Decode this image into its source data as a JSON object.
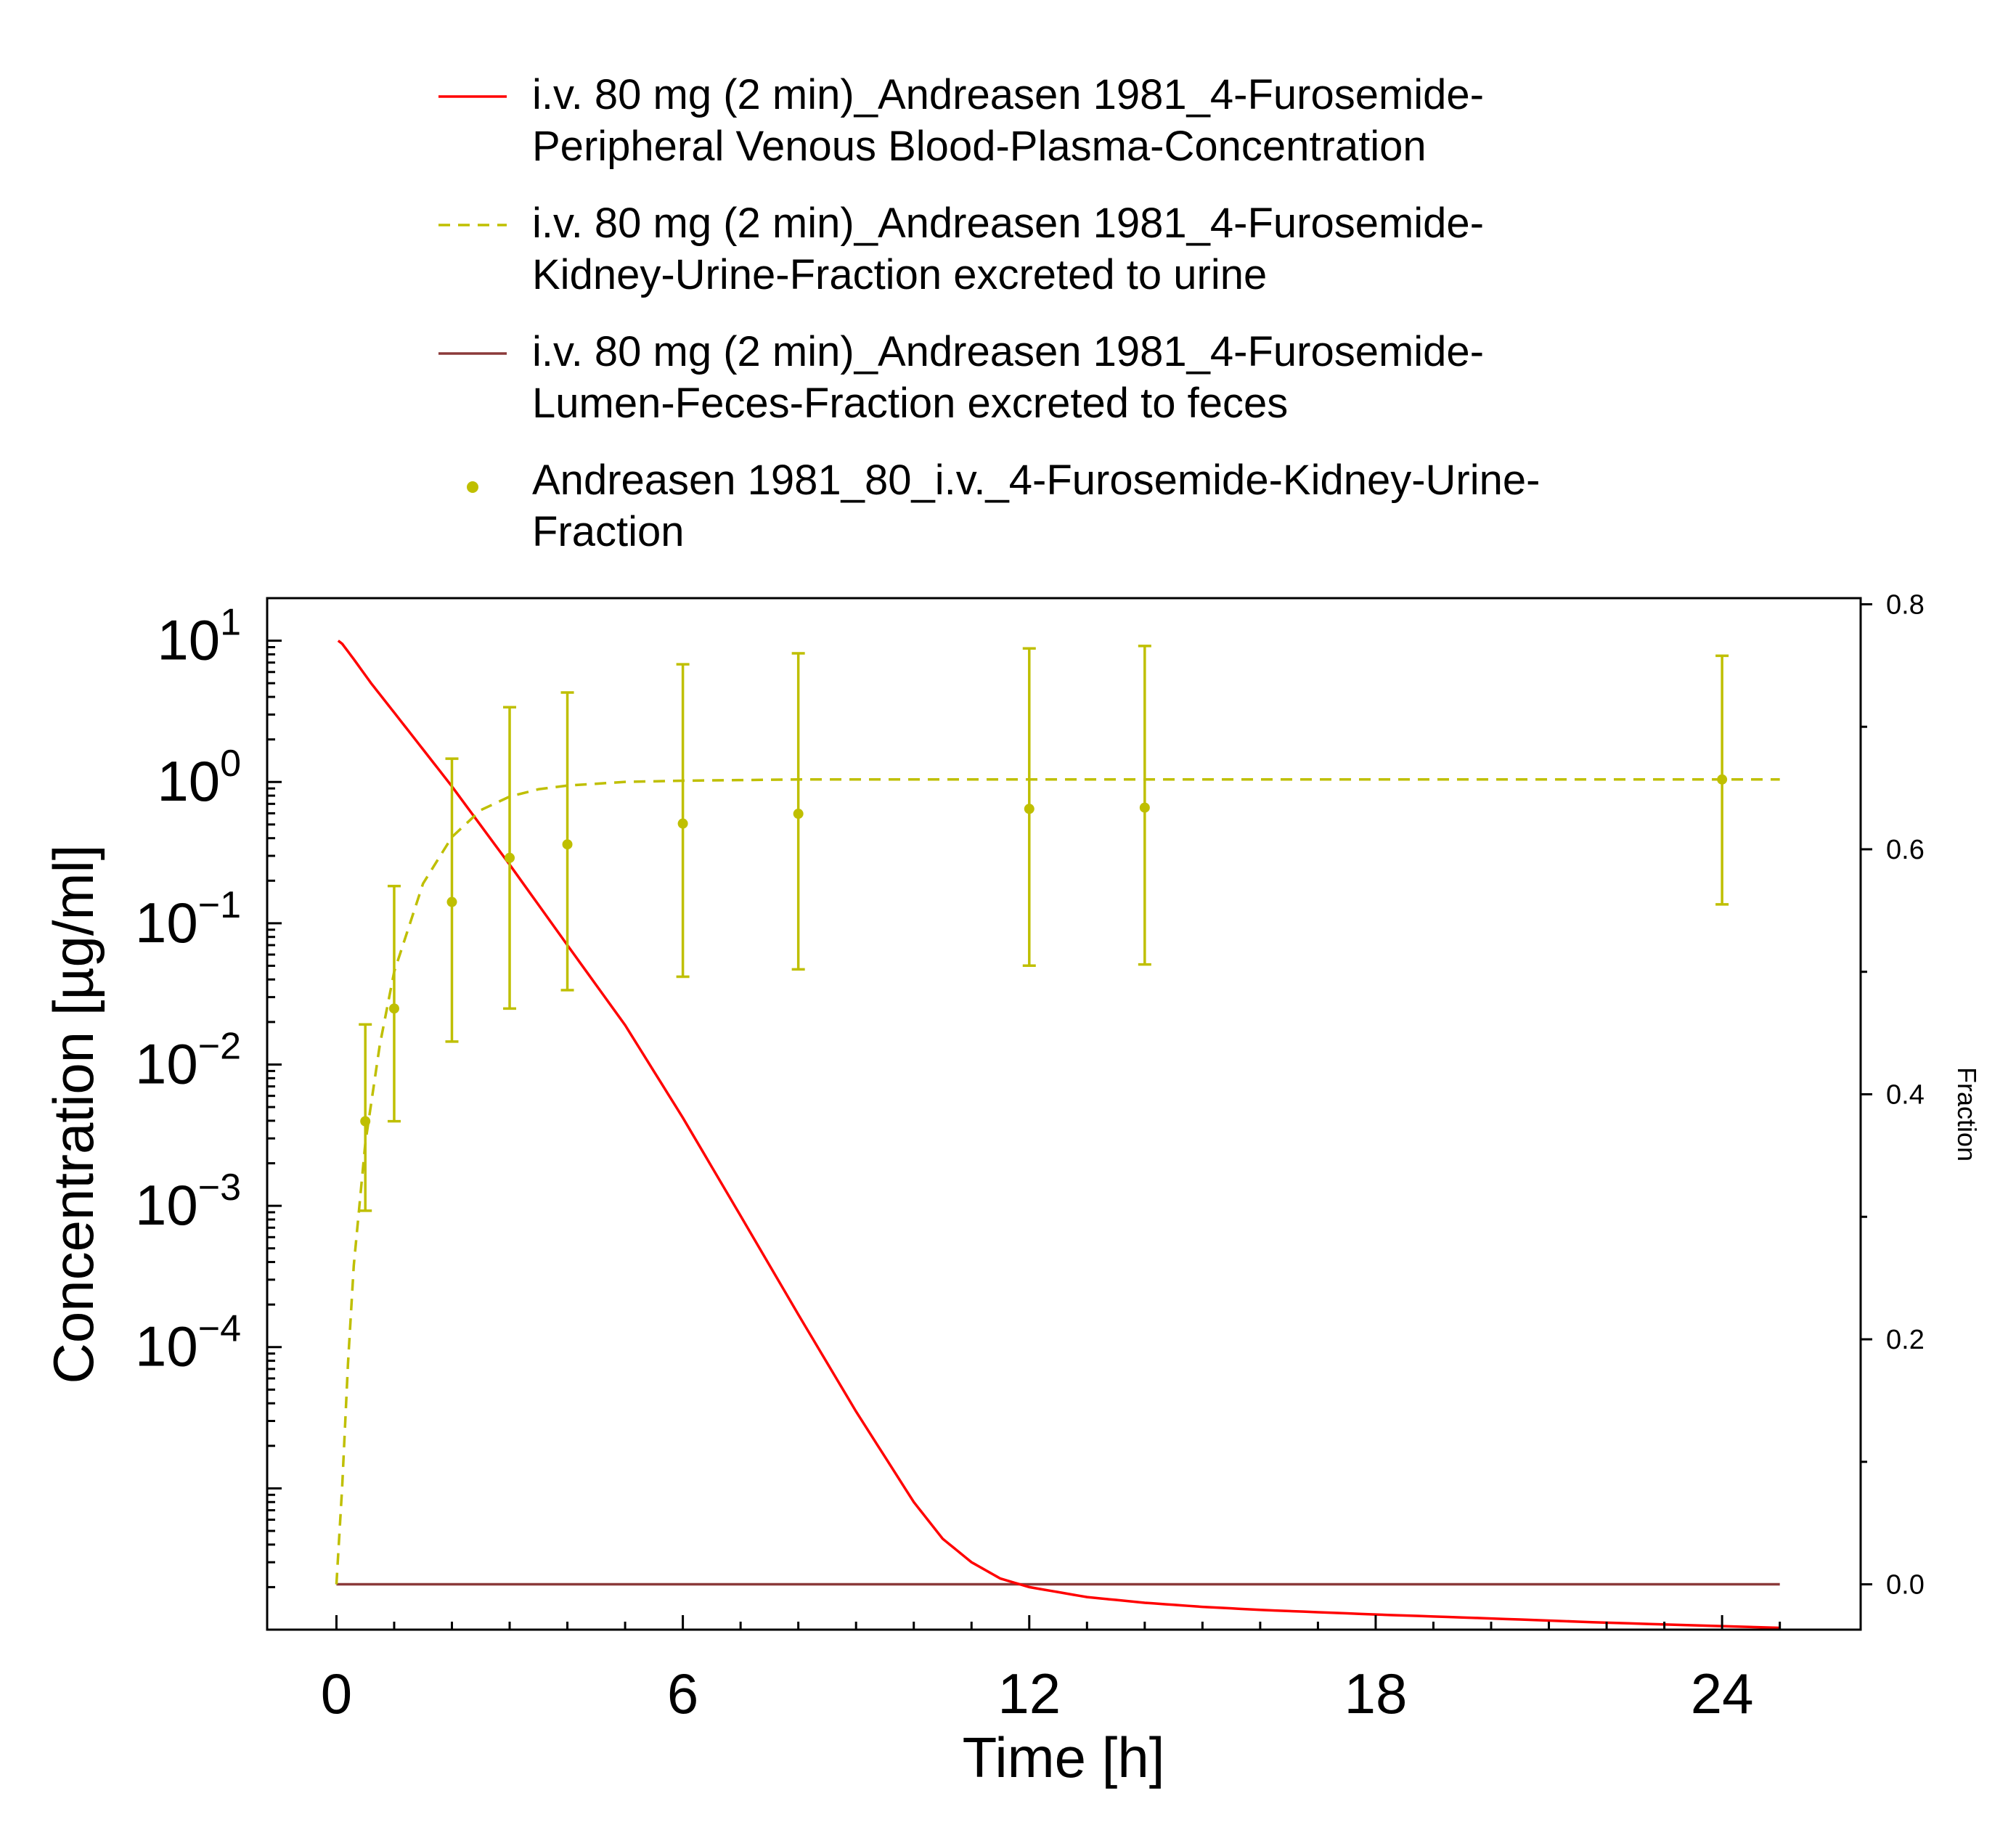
{
  "chart_data": {
    "type": "line",
    "xlabel": "Time [h]",
    "ylabel": "Concentration [µg/ml]",
    "y2label": "Fraction",
    "xlim": [
      -1.2,
      26.4
    ],
    "xticks": [
      "0",
      "6",
      "12",
      "18",
      "24"
    ],
    "ylim": [
      1e-06,
      20
    ],
    "yscale": "log",
    "yticks": [
      {
        "base": "10",
        "exp": "1"
      },
      {
        "base": "10",
        "exp": "0"
      },
      {
        "base": "10",
        "exp": "−1"
      },
      {
        "base": "10",
        "exp": "−2"
      },
      {
        "base": "10",
        "exp": "−3"
      },
      {
        "base": "10",
        "exp": "−4"
      }
    ],
    "y2lim": [
      -0.037,
      0.805
    ],
    "y2ticks": [
      "0.0",
      "0.2",
      "0.4",
      "0.6",
      "0.8"
    ],
    "grid": false,
    "legend_position": "top",
    "colors": {
      "plasma": "#ff0000",
      "urine": "#bfbf00",
      "feces": "#8b3a3a",
      "axis": "#000000"
    },
    "series": [
      {
        "name": "i.v. 80 mg (2 min)_Andreasen 1981_4-Furosemide-Peripheral Venous Blood-Plasma-Concentration",
        "legend_lines": [
          "i.v. 80 mg (2 min)_Andreasen 1981_4-Furosemide-",
          "Peripheral Venous Blood-Plasma-Concentration"
        ],
        "axis": "left",
        "style": "solid",
        "x": [
          0.03,
          0.1,
          0.3,
          0.6,
          1,
          1.5,
          2,
          3,
          4,
          5,
          6,
          7,
          8,
          9,
          10,
          10.5,
          11,
          11.5,
          12,
          13,
          14,
          15,
          16,
          18,
          20,
          22,
          25
        ],
        "y": [
          10.0,
          9.5,
          7.4,
          5.0,
          3.1,
          1.7,
          0.93,
          0.26,
          0.07,
          0.019,
          0.0042,
          0.00085,
          0.00017,
          3.5e-05,
          8e-06,
          4.4e-06,
          3e-06,
          2.3e-06,
          2e-06,
          1.7e-06,
          1.55e-06,
          1.45e-06,
          1.38e-06,
          1.28e-06,
          1.2e-06,
          1.12e-06,
          1.03e-06
        ]
      },
      {
        "name": "i.v. 80 mg (2 min)_Andreasen 1981_4-Furosemide-Kidney-Urine-Fraction excreted to urine",
        "legend_lines": [
          "i.v. 80 mg (2 min)_Andreasen 1981_4-Furosemide-",
          "Kidney-Urine-Fraction excreted to urine"
        ],
        "axis": "right",
        "style": "dashed",
        "x": [
          0,
          0.1,
          0.2,
          0.3,
          0.5,
          0.75,
          1,
          1.5,
          2,
          2.5,
          3,
          3.5,
          4,
          5,
          6,
          8,
          10,
          12,
          15,
          20,
          25
        ],
        "y": [
          0.0,
          0.08,
          0.18,
          0.26,
          0.36,
          0.44,
          0.5,
          0.572,
          0.61,
          0.632,
          0.643,
          0.649,
          0.652,
          0.655,
          0.656,
          0.657,
          0.657,
          0.657,
          0.657,
          0.657,
          0.657
        ]
      },
      {
        "name": "i.v. 80 mg (2 min)_Andreasen 1981_4-Furosemide-Lumen-Feces-Fraction excreted to feces",
        "legend_lines": [
          "i.v. 80 mg (2 min)_Andreasen 1981_4-Furosemide-",
          "Lumen-Feces-Fraction excreted to feces"
        ],
        "axis": "right",
        "style": "solid",
        "x": [
          0,
          25
        ],
        "y": [
          0.0,
          0.0
        ]
      },
      {
        "name": "Andreasen 1981_80_i.v._4-Furosemide-Kidney-Urine-Fraction",
        "legend_lines": [
          "Andreasen 1981_80_i.v._4-Furosemide-Kidney-Urine-",
          "Fraction"
        ],
        "axis": "right",
        "style": "points",
        "points": [
          {
            "x": 0.5,
            "y": 0.378,
            "err_low": 0.305,
            "err_high": 0.457
          },
          {
            "x": 1,
            "y": 0.47,
            "err_low": 0.378,
            "err_high": 0.57
          },
          {
            "x": 2,
            "y": 0.557,
            "err_low": 0.443,
            "err_high": 0.674
          },
          {
            "x": 3,
            "y": 0.593,
            "err_low": 0.47,
            "err_high": 0.716
          },
          {
            "x": 4,
            "y": 0.604,
            "err_low": 0.485,
            "err_high": 0.728
          },
          {
            "x": 6,
            "y": 0.621,
            "err_low": 0.496,
            "err_high": 0.751
          },
          {
            "x": 8,
            "y": 0.629,
            "err_low": 0.502,
            "err_high": 0.76
          },
          {
            "x": 12,
            "y": 0.633,
            "err_low": 0.505,
            "err_high": 0.764
          },
          {
            "x": 14,
            "y": 0.634,
            "err_low": 0.506,
            "err_high": 0.766
          },
          {
            "x": 24,
            "y": 0.657,
            "err_low": 0.555,
            "err_high": 0.758
          }
        ]
      }
    ]
  }
}
